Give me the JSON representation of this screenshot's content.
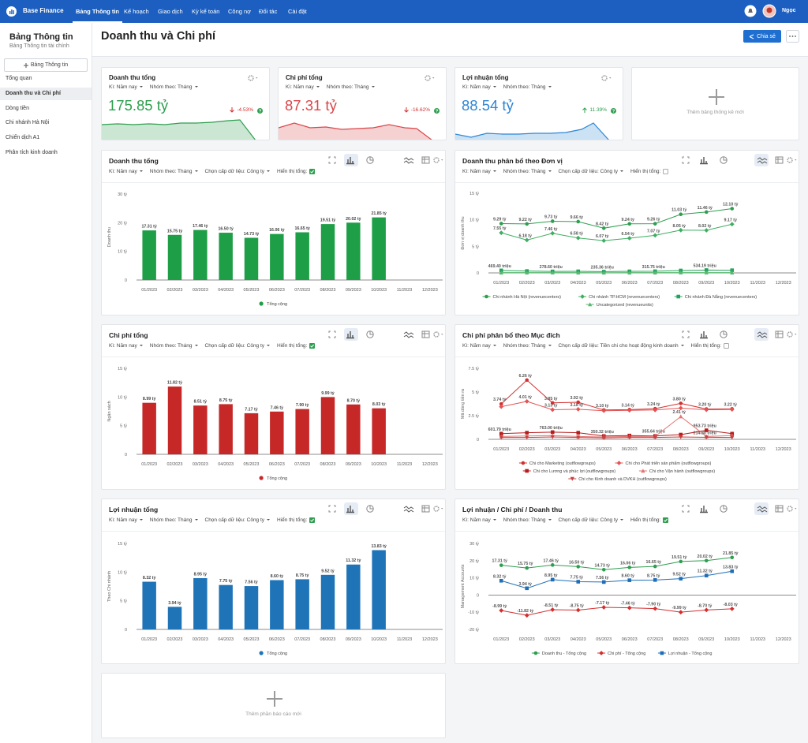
{
  "nav": {
    "brand": "Base Finance",
    "menu": [
      "Bảng Thông tin",
      "Kế hoạch",
      "Giao dịch",
      "Kỳ kế toán",
      "Công nợ",
      "Đối tác",
      "Cài đặt"
    ],
    "user": "Ngọc"
  },
  "sidebar": {
    "title": "Bảng Thông tin",
    "subtitle": "Bảng Thông tin tài chính",
    "button": "Bảng Thông tin",
    "items": [
      "Tổng quan",
      "Doanh thu và Chi phí",
      "Dòng tiền",
      "Chi nhánh Hà Nội",
      "Chiến dịch A1",
      "Phân tích kinh doanh"
    ]
  },
  "header": {
    "title": "Doanh thu và Chi phí",
    "share": "Chia sẻ"
  },
  "kpis": [
    {
      "title": "Doanh thu tổng",
      "period": "Kì: Năm nay",
      "group": "Nhóm theo: Tháng",
      "value": "175.85 tỷ",
      "change": "-4.53%",
      "trend": "down",
      "color": "#2e9e4f"
    },
    {
      "title": "Chi phí tổng",
      "period": "Kì: Năm nay",
      "group": "Nhóm theo: Tháng",
      "value": "87.31 tỷ",
      "change": "-16.62%",
      "trend": "down",
      "color": "#d9474a"
    },
    {
      "title": "Lợi nhuận tổng",
      "period": "Kì: Năm nay",
      "group": "Nhóm theo: Tháng",
      "value": "88.54 tỷ",
      "change": "11.39%",
      "trend": "up",
      "color": "#2f86d4"
    }
  ],
  "add_widget": "Thêm bảng thống kê mới",
  "chart_data": [
    {
      "type": "bar",
      "title": "Doanh thu tổng",
      "filters": [
        "Kì: Năm nay",
        "Nhóm theo: Tháng",
        "Chọn cấp dữ liệu: Công ty",
        "Hiển thị tổng:"
      ],
      "show_total": true,
      "ylabel": "Doanh thu",
      "categories": [
        "01/2023",
        "02/2023",
        "03/2023",
        "04/2023",
        "05/2023",
        "06/2023",
        "07/2023",
        "08/2023",
        "09/2023",
        "10/2023",
        "11/2023",
        "12/2023"
      ],
      "ylim": [
        0,
        30
      ],
      "yticks": [
        0,
        {
          "value": 10,
          "label": "10 tỷ"
        },
        {
          "value": 20,
          "label": "20 tỷ"
        },
        {
          "value": 30,
          "label": "30 tỷ"
        }
      ],
      "series": [
        {
          "name": "Tổng cộng",
          "color": "#1e9e46",
          "marker": "circle",
          "values": [
            17.31,
            15.75,
            17.46,
            16.5,
            14.73,
            16.06,
            16.65,
            19.51,
            20.02,
            21.85,
            null,
            null
          ],
          "value_labels": [
            "17.31 tỷ",
            "15.75 tỷ",
            "17.46 tỷ",
            "16.50 tỷ",
            "14.73 tỷ",
            "16.06 tỷ",
            "16.65 tỷ",
            "19.51 tỷ",
            "20.02 tỷ",
            "21.85 tỷ",
            null,
            null
          ]
        }
      ]
    },
    {
      "type": "line",
      "title": "Doanh thu phân bổ theo Đơn vị",
      "filters": [
        "Kì: Năm nay",
        "Nhóm theo: Tháng",
        "Chọn cấp dữ liệu: Công ty",
        "Hiển thị tổng:"
      ],
      "show_total": false,
      "ylabel": "Đơn vị doanh thu",
      "categories": [
        "01/2023",
        "02/2023",
        "03/2023",
        "04/2023",
        "05/2023",
        "06/2023",
        "07/2023",
        "08/2023",
        "09/2023",
        "10/2023",
        "11/2023",
        "12/2023"
      ],
      "ylim": [
        0,
        15
      ],
      "yticks": [
        0,
        {
          "value": 5,
          "label": "5 tỷ"
        },
        {
          "value": 10,
          "label": "10 tỷ"
        },
        {
          "value": 15,
          "label": "15 tỷ"
        }
      ],
      "series": [
        {
          "name": "Chi nhánh Hà Nội (revenuecenters)",
          "color": "#2e9e4f",
          "marker": "circle",
          "values": [
            9.29,
            9.22,
            9.73,
            9.66,
            8.42,
            9.24,
            9.26,
            11.03,
            11.46,
            12.1,
            null,
            null
          ],
          "value_labels": [
            "9.29 tỷ",
            "9.22 tỷ",
            "9.73 tỷ",
            "9.66 tỷ",
            "8.42 tỷ",
            "9.24 tỷ",
            "9.26 tỷ",
            "11.03 tỷ",
            "11.46 tỷ",
            "12.10 tỷ",
            null,
            null
          ]
        },
        {
          "name": "Chi nhánh TP.HCM (revenuecenters)",
          "color": "#3fae62",
          "marker": "diamond",
          "values": [
            7.55,
            6.18,
            7.46,
            6.58,
            6.07,
            6.54,
            7.07,
            8.05,
            8.02,
            9.17,
            null,
            null
          ],
          "value_labels": [
            "7.55 tỷ",
            "6.18 tỷ",
            "7.46 tỷ",
            "6.58 tỷ",
            "6.07 tỷ",
            "6.54 tỷ",
            "7.07 tỷ",
            "8.05 tỷ",
            "8.02 tỷ",
            "9.17 tỷ",
            null,
            null
          ]
        },
        {
          "name": "Chi nhánh Đà Nẵng (revenuecenters)",
          "color": "#25a35c",
          "marker": "square",
          "values": [
            0.4694,
            0.35,
            0.2786,
            0.3,
            0.23536,
            0.3,
            0.31575,
            0.45,
            0.53419,
            0.5,
            null,
            null
          ],
          "value_labels": [
            "469.40 triệu",
            null,
            "278.60 triệu",
            null,
            "235.36 triệu",
            null,
            "315.75 triệu",
            null,
            "534.19 triệu",
            null,
            null,
            null
          ]
        },
        {
          "name": "Uncategorized (revenueunits)",
          "color": "#57b86f",
          "marker": "triangle",
          "values": [
            0.05,
            0.05,
            0.06,
            0.05,
            0.04,
            0.05,
            0.05,
            0.06,
            0.06,
            0.05,
            null,
            null
          ]
        }
      ]
    },
    {
      "type": "bar",
      "title": "Chi phí tổng",
      "filters": [
        "Kì: Năm nay",
        "Nhóm theo: Tháng",
        "Chọn cấp dữ liệu: Công ty",
        "Hiển thị tổng:"
      ],
      "show_total": true,
      "ylabel": "Ngân sách",
      "categories": [
        "01/2023",
        "02/2023",
        "03/2023",
        "04/2023",
        "05/2023",
        "06/2023",
        "07/2023",
        "08/2023",
        "09/2023",
        "10/2023",
        "11/2023",
        "12/2023"
      ],
      "ylim": [
        0,
        15
      ],
      "yticks": [
        0,
        {
          "value": 5,
          "label": "5 tỷ"
        },
        {
          "value": 10,
          "label": "10 tỷ"
        },
        {
          "value": 15,
          "label": "15 tỷ"
        }
      ],
      "series": [
        {
          "name": "Tổng cộng",
          "color": "#c62828",
          "marker": "circle",
          "values": [
            8.99,
            11.82,
            8.51,
            8.75,
            7.17,
            7.46,
            7.9,
            9.99,
            8.7,
            8.03,
            null,
            null
          ],
          "value_labels": [
            "8.99 tỷ",
            "11.82 tỷ",
            "8.51 tỷ",
            "8.75 tỷ",
            "7.17 tỷ",
            "7.46 tỷ",
            "7.90 tỷ",
            "9.99 tỷ",
            "8.70 tỷ",
            "8.03 tỷ",
            null,
            null
          ]
        }
      ]
    },
    {
      "type": "line",
      "title": "Chi phí phân bổ theo Mục đích",
      "filters": [
        "Kì: Năm nay",
        "Nhóm theo: Tháng",
        "Chọn cấp dữ liệu: Tiền chi cho hoạt động kinh doanh",
        "Hiển thị tổng:"
      ],
      "show_total": false,
      "ylabel": "Mã dòng tiền ra",
      "categories": [
        "01/2023",
        "02/2023",
        "03/2023",
        "04/2023",
        "05/2023",
        "06/2023",
        "07/2023",
        "08/2023",
        "09/2023",
        "10/2023",
        "11/2023",
        "12/2023"
      ],
      "ylim": [
        0,
        7.5
      ],
      "yticks": [
        0,
        {
          "value": 2.5,
          "label": "2.5 tỷ"
        },
        {
          "value": 5,
          "label": "5 tỷ"
        },
        {
          "value": 7.5,
          "label": "7.5 tỷ"
        }
      ],
      "series": [
        {
          "name": "Chi cho Marketing (outflowgroups)",
          "color": "#d32f2f",
          "marker": "circle",
          "values": [
            3.74,
            6.26,
            3.85,
            3.92,
            3.1,
            3.14,
            3.24,
            3.8,
            3.2,
            3.22,
            null,
            null
          ],
          "value_labels": [
            "3.74 tỷ",
            "6.26 tỷ",
            "3.85 tỷ",
            "3.92 tỷ",
            "3.10 tỷ",
            "3.14 tỷ",
            "3.24 tỷ",
            "3.80 tỷ",
            "3.20 tỷ",
            "3.22 tỷ",
            null,
            null
          ]
        },
        {
          "name": "Chi cho Phát triển sản phẩm (outflowgroups)",
          "color": "#e25454",
          "marker": "diamond",
          "values": [
            3.45,
            4.01,
            3.13,
            3.18,
            3.02,
            3.06,
            3.1,
            3.3,
            3.12,
            3.16,
            null,
            null
          ],
          "value_labels": [
            null,
            "4.01 tỷ",
            "3.13 tỷ",
            "3.18 tỷ",
            null,
            null,
            null,
            null,
            null,
            null,
            null,
            null
          ]
        },
        {
          "name": "Chi cho Lương và phúc lợi (outflowgroups)",
          "color": "#b71c1c",
          "marker": "square",
          "values": [
            0.60179,
            0.7,
            0.763,
            0.7,
            0.35032,
            0.4,
            0.35564,
            0.5,
            0.95373,
            0.6,
            null,
            null
          ],
          "value_labels": [
            "601.79 triệu",
            null,
            "763.00 triệu",
            null,
            "350.32 triệu",
            null,
            "355.64 triệu",
            null,
            "953.73 triệu",
            null,
            null,
            null
          ]
        },
        {
          "name": "Chi cho Vận hành (outflowgroups)",
          "color": "#e57373",
          "marker": "triangle",
          "values": [
            0.3,
            0.35,
            0.4,
            0.3,
            0.25,
            0.3,
            0.3,
            2.41,
            0.3,
            0.4,
            null,
            null
          ],
          "value_labels": [
            null,
            null,
            null,
            null,
            null,
            null,
            null,
            "2.41 tỷ",
            null,
            null,
            null,
            null
          ]
        },
        {
          "name": "Chi cho Kinh doanh và DVKH (outflowgroups)",
          "color": "#c94040",
          "marker": "triangle-down",
          "values": [
            0.2,
            0.2,
            0.25,
            0.2,
            0.15,
            0.2,
            0.2,
            0.25,
            0.2143,
            0.2,
            null,
            null
          ],
          "value_labels": [
            null,
            null,
            null,
            null,
            null,
            null,
            null,
            null,
            "214.30 triệu",
            null,
            null,
            null
          ]
        }
      ]
    },
    {
      "type": "bar",
      "title": "Lợi nhuận tổng",
      "filters": [
        "Kì: Năm nay",
        "Nhóm theo: Tháng",
        "Chọn cấp dữ liệu: Công ty",
        "Hiển thị tổng:"
      ],
      "show_total": true,
      "ylabel": "Theo Chi nhánh",
      "categories": [
        "01/2023",
        "02/2023",
        "03/2023",
        "04/2023",
        "05/2023",
        "06/2023",
        "07/2023",
        "08/2023",
        "09/2023",
        "10/2023",
        "11/2023",
        "12/2023"
      ],
      "ylim": [
        0,
        15
      ],
      "yticks": [
        0,
        {
          "value": 5,
          "label": "5 tỷ"
        },
        {
          "value": 10,
          "label": "10 tỷ"
        },
        {
          "value": 15,
          "label": "15 tỷ"
        }
      ],
      "series": [
        {
          "name": "Tổng cộng",
          "color": "#1f74b8",
          "marker": "circle",
          "values": [
            8.32,
            3.94,
            8.95,
            7.75,
            7.56,
            8.6,
            8.75,
            9.52,
            11.32,
            13.83,
            null,
            null
          ],
          "value_labels": [
            "8.32 tỷ",
            "3.94 tỷ",
            "8.95 tỷ",
            "7.75 tỷ",
            "7.56 tỷ",
            "8.60 tỷ",
            "8.75 tỷ",
            "9.52 tỷ",
            "11.32 tỷ",
            "13.83 tỷ",
            null,
            null
          ]
        }
      ]
    },
    {
      "type": "line",
      "title": "Lợi nhuận / Chi phí / Doanh thu",
      "filters": [
        "Kì: Năm nay",
        "Nhóm theo: Tháng",
        "Chọn cấp dữ liệu: Công ty",
        "Hiển thị tổng:"
      ],
      "show_total": true,
      "ylabel": "Management Accounts",
      "categories": [
        "01/2023",
        "02/2023",
        "03/2023",
        "04/2023",
        "05/2023",
        "06/2023",
        "07/2023",
        "08/2023",
        "09/2023",
        "10/2023",
        "11/2023",
        "12/2023"
      ],
      "ylim": [
        -20,
        30
      ],
      "yticks": [
        {
          "value": -20,
          "label": "-20 tỷ"
        },
        {
          "value": -10,
          "label": "-10 tỷ"
        },
        0,
        {
          "value": 10,
          "label": "10 tỷ"
        },
        {
          "value": 20,
          "label": "20 tỷ"
        },
        {
          "value": 30,
          "label": "30 tỷ"
        }
      ],
      "series": [
        {
          "name": "Doanh thu - Tổng cộng",
          "color": "#2e9e4f",
          "marker": "circle",
          "values": [
            17.31,
            15.75,
            17.46,
            16.5,
            14.73,
            16.06,
            16.65,
            19.51,
            20.02,
            21.85,
            null,
            null
          ],
          "value_labels": [
            "17.31 tỷ",
            "15.75 tỷ",
            "17.46 tỷ",
            "16.50 tỷ",
            "14.73 tỷ",
            "16.06 tỷ",
            "16.65 tỷ",
            "19.51 tỷ",
            "20.02 tỷ",
            "21.85 tỷ",
            null,
            null
          ]
        },
        {
          "name": "Chi phí - Tổng cộng",
          "color": "#d32f2f",
          "marker": "diamond",
          "values": [
            -8.99,
            -11.82,
            -8.51,
            -8.75,
            -7.17,
            -7.46,
            -7.9,
            -9.99,
            -8.7,
            -8.03,
            null,
            null
          ],
          "value_labels": [
            "-8.99 tỷ",
            "-11.82 tỷ",
            "-8.51 tỷ",
            "-8.75 tỷ",
            "-7.17 tỷ",
            "-7.46 tỷ",
            "-7.90 tỷ",
            "-9.99 tỷ",
            "-8.70 tỷ",
            "-8.03 tỷ",
            null,
            null
          ]
        },
        {
          "name": "Lợi nhuận - Tổng cộng",
          "color": "#1f6fb8",
          "marker": "square",
          "values": [
            8.32,
            3.94,
            8.95,
            7.75,
            7.56,
            8.6,
            8.75,
            9.52,
            11.32,
            13.83,
            null,
            null
          ],
          "value_labels": [
            "8.32 tỷ",
            "3.94 tỷ",
            "8.95 tỷ",
            "7.75 tỷ",
            "7.56 tỷ",
            "8.60 tỷ",
            "8.75 tỷ",
            "9.52 tỷ",
            "11.32 tỷ",
            "13.83 tỷ",
            null,
            null
          ]
        }
      ]
    }
  ],
  "add_report": "Thêm phần báo cáo mới"
}
